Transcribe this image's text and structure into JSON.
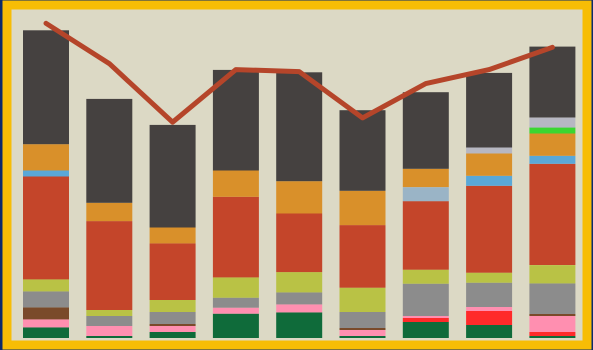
{
  "colors": {
    "navy_background": "#0b2a6b",
    "border_yellow": "#f7bd05",
    "plot_background": "#dcd9c5",
    "trend_line": "#b5452a"
  },
  "chart_data": {
    "type": "bar",
    "stacked": true,
    "title": "",
    "xlabel": "",
    "ylabel": "",
    "ylim": [
      0,
      100
    ],
    "grid": false,
    "legend": "none",
    "categories": [
      "",
      "",
      "",
      "",
      "",
      "",
      "",
      "",
      ""
    ],
    "series": [
      {
        "color": "#0f6b3a",
        "values": [
          3.2,
          0.6,
          1.8,
          7.3,
          7.7,
          0.6,
          4.8,
          3.9,
          0.6
        ]
      },
      {
        "color": "#ff2a2a",
        "values": [
          0.0,
          0.0,
          0.0,
          0.0,
          0.0,
          0.0,
          1.2,
          4.2,
          1.2
        ]
      },
      {
        "color": "#ff8fb0",
        "values": [
          2.4,
          3.0,
          1.8,
          1.8,
          2.4,
          1.8,
          0.6,
          1.2,
          4.8
        ]
      },
      {
        "color": "#7a4a2a",
        "values": [
          3.6,
          0.0,
          0.6,
          0.0,
          0.0,
          0.6,
          0.0,
          0.0,
          0.6
        ]
      },
      {
        "color": "#8c8c8c",
        "values": [
          4.8,
          3.0,
          3.6,
          3.0,
          3.6,
          4.8,
          9.7,
          7.3,
          9.2
        ]
      },
      {
        "color": "#b9c245",
        "values": [
          3.6,
          1.8,
          3.6,
          6.1,
          6.1,
          7.3,
          4.2,
          3.0,
          5.5
        ]
      },
      {
        "color": "#c4452a",
        "values": [
          30.9,
          26.7,
          17.0,
          24.2,
          17.6,
          18.8,
          20.6,
          26.1,
          30.4
        ]
      },
      {
        "color": "#9ab4c6",
        "values": [
          0.0,
          0.0,
          0.0,
          0.0,
          0.0,
          0.0,
          4.2,
          0.0,
          0.0
        ]
      },
      {
        "color": "#5aa8d8",
        "values": [
          1.8,
          0.0,
          0.0,
          0.0,
          0.0,
          0.0,
          0.0,
          3.0,
          2.4
        ]
      },
      {
        "color": "#d9902a",
        "values": [
          7.9,
          5.5,
          4.8,
          7.9,
          9.7,
          10.3,
          5.5,
          6.7,
          6.7
        ]
      },
      {
        "color": "#3bd630",
        "values": [
          0.0,
          0.0,
          0.0,
          0.0,
          0.0,
          0.0,
          0.0,
          0.0,
          1.8
        ]
      },
      {
        "color": "#b7b7c2",
        "values": [
          0.0,
          0.0,
          0.0,
          0.0,
          0.0,
          0.0,
          0.0,
          1.8,
          3.0
        ]
      },
      {
        "color": "#454140",
        "values": [
          34.2,
          31.2,
          30.8,
          30.2,
          32.7,
          24.2,
          23.0,
          22.4,
          21.3
        ]
      }
    ],
    "line": {
      "color": "#b5452a",
      "values": [
        94.5,
        82.4,
        64.8,
        80.6,
        80.0,
        66.1,
        76.4,
        80.6,
        87.3
      ]
    }
  }
}
